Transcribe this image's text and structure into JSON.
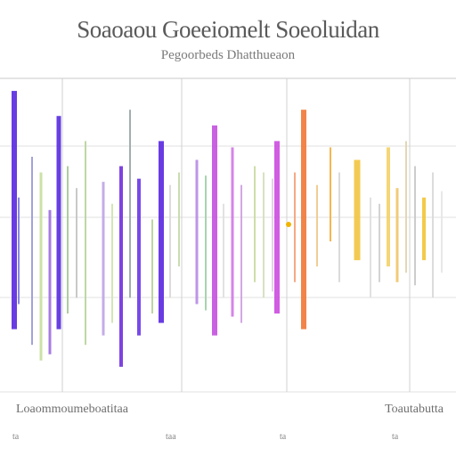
{
  "title": "Soaoaou Goeeiomelt Soeoluidan",
  "subtitle": "Pegoorbeds Dhatthueaon",
  "footer_left": "Loaommoumeboatitaa",
  "footer_right": "Toautabutta",
  "x_ticks": [
    "ta",
    "taa",
    "ta",
    "ta"
  ],
  "chart_data": {
    "type": "bar",
    "title": "Soaoaou Goeeiomelt Soeoluidan",
    "subtitle": "Pegoorbeds Dhatthueaon",
    "grid": true,
    "ylim": [
      0,
      1
    ],
    "bars": [
      {
        "x": 0.02,
        "lo": 0.2,
        "hi": 0.96,
        "color": "#5b2be0",
        "w": 6
      },
      {
        "x": 0.03,
        "lo": 0.28,
        "hi": 0.62,
        "color": "#7d7dd6",
        "w": 2
      },
      {
        "x": 0.06,
        "lo": 0.15,
        "hi": 0.75,
        "color": "#9a9ad8",
        "w": 2
      },
      {
        "x": 0.08,
        "lo": 0.1,
        "hi": 0.7,
        "color": "#c8e0a0",
        "w": 3
      },
      {
        "x": 0.1,
        "lo": 0.12,
        "hi": 0.58,
        "color": "#a070e0",
        "w": 3
      },
      {
        "x": 0.12,
        "lo": 0.2,
        "hi": 0.88,
        "color": "#5a2fe0",
        "w": 5
      },
      {
        "x": 0.14,
        "lo": 0.25,
        "hi": 0.72,
        "color": "#a8c898",
        "w": 2
      },
      {
        "x": 0.16,
        "lo": 0.3,
        "hi": 0.65,
        "color": "#c4c4c4",
        "w": 2
      },
      {
        "x": 0.18,
        "lo": 0.15,
        "hi": 0.8,
        "color": "#b9d49c",
        "w": 2
      },
      {
        "x": 0.22,
        "lo": 0.18,
        "hi": 0.67,
        "color": "#bfa6e6",
        "w": 3
      },
      {
        "x": 0.24,
        "lo": 0.22,
        "hi": 0.6,
        "color": "#cfe3b0",
        "w": 2
      },
      {
        "x": 0.26,
        "lo": 0.08,
        "hi": 0.72,
        "color": "#7333dd",
        "w": 4
      },
      {
        "x": 0.28,
        "lo": 0.3,
        "hi": 0.9,
        "color": "#9aa8a8",
        "w": 2
      },
      {
        "x": 0.3,
        "lo": 0.18,
        "hi": 0.68,
        "color": "#6d3be6",
        "w": 4
      },
      {
        "x": 0.33,
        "lo": 0.25,
        "hi": 0.55,
        "color": "#b5d09a",
        "w": 2
      },
      {
        "x": 0.35,
        "lo": 0.22,
        "hi": 0.8,
        "color": "#5b2be0",
        "w": 6
      },
      {
        "x": 0.37,
        "lo": 0.3,
        "hi": 0.66,
        "color": "#d9d9d9",
        "w": 2
      },
      {
        "x": 0.39,
        "lo": 0.4,
        "hi": 0.7,
        "color": "#c6d9aa",
        "w": 2
      },
      {
        "x": 0.43,
        "lo": 0.28,
        "hi": 0.74,
        "color": "#b88be6",
        "w": 3
      },
      {
        "x": 0.45,
        "lo": 0.26,
        "hi": 0.69,
        "color": "#a1d0a8",
        "w": 2
      },
      {
        "x": 0.47,
        "lo": 0.18,
        "hi": 0.85,
        "color": "#c454e0",
        "w": 6
      },
      {
        "x": 0.49,
        "lo": 0.3,
        "hi": 0.6,
        "color": "#e0e0e0",
        "w": 2
      },
      {
        "x": 0.51,
        "lo": 0.24,
        "hi": 0.78,
        "color": "#d07ae8",
        "w": 3
      },
      {
        "x": 0.53,
        "lo": 0.22,
        "hi": 0.66,
        "color": "#cfa0e3",
        "w": 2
      },
      {
        "x": 0.56,
        "lo": 0.35,
        "hi": 0.72,
        "color": "#c9dba2",
        "w": 2
      },
      {
        "x": 0.58,
        "lo": 0.3,
        "hi": 0.7,
        "color": "#d3e0bc",
        "w": 2
      },
      {
        "x": 0.6,
        "lo": 0.32,
        "hi": 0.68,
        "color": "#e6c9f0",
        "w": 2
      },
      {
        "x": 0.61,
        "lo": 0.25,
        "hi": 0.8,
        "color": "#cc4fe0",
        "w": 6
      },
      {
        "x": 0.65,
        "lo": 0.35,
        "hi": 0.7,
        "color": "#f5a37a",
        "w": 2
      },
      {
        "x": 0.67,
        "lo": 0.2,
        "hi": 0.9,
        "color": "#f07a3a",
        "w": 6
      },
      {
        "x": 0.7,
        "lo": 0.4,
        "hi": 0.66,
        "color": "#f1c98a",
        "w": 2
      },
      {
        "x": 0.73,
        "lo": 0.48,
        "hi": 0.78,
        "color": "#f3b040",
        "w": 2
      },
      {
        "x": 0.75,
        "lo": 0.35,
        "hi": 0.7,
        "color": "#d8d8d8",
        "w": 2
      },
      {
        "x": 0.79,
        "lo": 0.42,
        "hi": 0.74,
        "color": "#f2c642",
        "w": 7
      },
      {
        "x": 0.82,
        "lo": 0.3,
        "hi": 0.62,
        "color": "#dedede",
        "w": 2
      },
      {
        "x": 0.84,
        "lo": 0.35,
        "hi": 0.6,
        "color": "#cfcfcf",
        "w": 2
      },
      {
        "x": 0.86,
        "lo": 0.4,
        "hi": 0.78,
        "color": "#f3d26a",
        "w": 4
      },
      {
        "x": 0.88,
        "lo": 0.35,
        "hi": 0.65,
        "color": "#f0c76d",
        "w": 3
      },
      {
        "x": 0.9,
        "lo": 0.38,
        "hi": 0.8,
        "color": "#e0d4b0",
        "w": 2
      },
      {
        "x": 0.92,
        "lo": 0.34,
        "hi": 0.72,
        "color": "#c8c8c8",
        "w": 2
      },
      {
        "x": 0.94,
        "lo": 0.42,
        "hi": 0.62,
        "color": "#f2c53a",
        "w": 4
      },
      {
        "x": 0.96,
        "lo": 0.3,
        "hi": 0.7,
        "color": "#d9d9d9",
        "w": 2
      },
      {
        "x": 0.98,
        "lo": 0.38,
        "hi": 0.64,
        "color": "#e6e6e6",
        "w": 2
      }
    ]
  }
}
